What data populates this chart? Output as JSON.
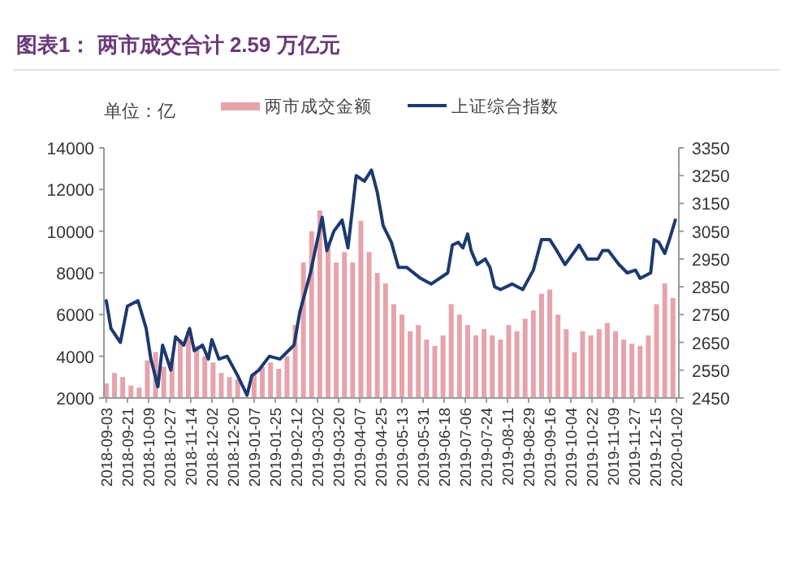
{
  "chart_data": {
    "type": "bar",
    "title": "图表1：  两市成交合计 2.59 万亿元",
    "ylabel": "单位：亿",
    "xlim": [
      "2018-09-01",
      "2020-01-04"
    ],
    "xticks": [
      "2018-09-03",
      "2018-09-21",
      "2018-10-09",
      "2018-10-27",
      "2018-11-14",
      "2018-12-02",
      "2018-12-20",
      "2019-01-07",
      "2019-01-25",
      "2019-02-12",
      "2019-03-02",
      "2019-03-20",
      "2019-04-07",
      "2019-04-25",
      "2019-05-13",
      "2019-05-31",
      "2019-06-18",
      "2019-07-06",
      "2019-07-24",
      "2019-08-11",
      "2019-08-29",
      "2019-09-16",
      "2019-10-04",
      "2019-10-22",
      "2019-11-09",
      "2019-11-27",
      "2019-12-15",
      "2020-01-02"
    ],
    "ylim": [
      2000,
      14000
    ],
    "yticks": [
      2000,
      4000,
      6000,
      8000,
      10000,
      12000,
      14000
    ],
    "y2lim": [
      2450,
      3350
    ],
    "y2ticks": [
      2450,
      2550,
      2650,
      2750,
      2850,
      2950,
      3050,
      3150,
      3250,
      3350
    ],
    "legend": "top",
    "grid": false,
    "series": [
      {
        "name": "两市成交金额",
        "color": "#e6a3ab",
        "x": [
          "2018-09-03",
          "2018-09-10",
          "2018-09-17",
          "2018-09-24",
          "2018-10-01",
          "2018-10-08",
          "2018-10-15",
          "2018-10-22",
          "2018-10-29",
          "2018-11-05",
          "2018-11-12",
          "2018-11-19",
          "2018-11-26",
          "2018-12-03",
          "2018-12-10",
          "2018-12-17",
          "2018-12-24",
          "2019-01-07",
          "2019-01-14",
          "2019-01-21",
          "2019-01-28",
          "2019-02-04",
          "2019-02-11",
          "2019-02-18",
          "2019-02-25",
          "2019-03-04",
          "2019-03-11",
          "2019-03-18",
          "2019-03-25",
          "2019-04-01",
          "2019-04-08",
          "2019-04-15",
          "2019-04-22",
          "2019-04-29",
          "2019-05-06",
          "2019-05-13",
          "2019-05-20",
          "2019-05-27",
          "2019-06-03",
          "2019-06-10",
          "2019-06-17",
          "2019-06-24",
          "2019-07-01",
          "2019-07-08",
          "2019-07-15",
          "2019-07-22",
          "2019-07-29",
          "2019-08-05",
          "2019-08-12",
          "2019-08-19",
          "2019-08-26",
          "2019-09-02",
          "2019-09-09",
          "2019-09-16",
          "2019-09-23",
          "2019-09-30",
          "2019-10-07",
          "2019-10-14",
          "2019-10-21",
          "2019-10-28",
          "2019-11-04",
          "2019-11-11",
          "2019-11-18",
          "2019-11-25",
          "2019-12-02",
          "2019-12-09",
          "2019-12-16",
          "2019-12-23",
          "2019-12-30"
        ],
        "values": [
          2700,
          3200,
          3000,
          2600,
          2500,
          3800,
          4200,
          3500,
          3900,
          4800,
          5200,
          4500,
          4000,
          3700,
          3200,
          3000,
          2900,
          3200,
          3500,
          3700,
          3400,
          4000,
          5500,
          8500,
          10000,
          11000,
          9500,
          8500,
          9000,
          8500,
          10500,
          9000,
          8000,
          7500,
          6500,
          6000,
          5200,
          5500,
          4800,
          4500,
          5000,
          6500,
          6000,
          5500,
          5000,
          5300,
          5000,
          4800,
          5500,
          5200,
          5800,
          6200,
          7000,
          7200,
          6000,
          5300,
          4200,
          5200,
          5000,
          5300,
          5600,
          5200,
          4800,
          4600,
          4500,
          5000,
          6500,
          7500,
          6800
        ]
      },
      {
        "name": "上证综合指数",
        "type": "line",
        "axis": "y2",
        "color": "#1c3a70",
        "x": [
          "2018-09-03",
          "2018-09-07",
          "2018-09-15",
          "2018-09-21",
          "2018-09-30",
          "2018-10-07",
          "2018-10-11",
          "2018-10-17",
          "2018-10-21",
          "2018-10-28",
          "2018-11-01",
          "2018-11-08",
          "2018-11-13",
          "2018-11-17",
          "2018-11-24",
          "2018-11-29",
          "2018-12-02",
          "2018-12-08",
          "2018-12-15",
          "2018-12-24",
          "2019-01-01",
          "2019-01-05",
          "2019-01-11",
          "2019-01-20",
          "2019-01-29",
          "2019-02-10",
          "2019-02-15",
          "2019-02-24",
          "2019-02-28",
          "2019-03-06",
          "2019-03-10",
          "2019-03-16",
          "2019-03-23",
          "2019-03-28",
          "2019-04-04",
          "2019-04-11",
          "2019-04-17",
          "2019-04-22",
          "2019-04-27",
          "2019-05-04",
          "2019-05-10",
          "2019-05-17",
          "2019-05-29",
          "2019-06-07",
          "2019-06-21",
          "2019-06-25",
          "2019-06-30",
          "2019-07-04",
          "2019-07-08",
          "2019-07-11",
          "2019-07-16",
          "2019-07-23",
          "2019-07-27",
          "2019-07-31",
          "2019-08-05",
          "2019-08-15",
          "2019-08-24",
          "2019-09-02",
          "2019-09-09",
          "2019-09-16",
          "2019-09-22",
          "2019-09-29",
          "2019-10-11",
          "2019-10-18",
          "2019-10-27",
          "2019-10-31",
          "2019-11-05",
          "2019-11-14",
          "2019-11-21",
          "2019-11-28",
          "2019-12-02",
          "2019-12-11",
          "2019-12-14",
          "2019-12-18",
          "2019-12-23",
          "2019-12-27",
          "2020-01-01"
        ],
        "values": [
          2800,
          2700,
          2650,
          2780,
          2800,
          2700,
          2590,
          2490,
          2640,
          2550,
          2670,
          2640,
          2700,
          2620,
          2640,
          2590,
          2660,
          2590,
          2600,
          2530,
          2460,
          2530,
          2550,
          2600,
          2590,
          2640,
          2760,
          2900,
          2980,
          3100,
          2980,
          3050,
          3090,
          2990,
          3250,
          3230,
          3270,
          3190,
          3070,
          3010,
          2920,
          2920,
          2880,
          2860,
          2900,
          3000,
          3010,
          2990,
          3040,
          2980,
          2930,
          2950,
          2920,
          2850,
          2840,
          2860,
          2840,
          2910,
          3020,
          3020,
          2980,
          2930,
          3000,
          2950,
          2950,
          2980,
          2980,
          2930,
          2900,
          2910,
          2880,
          2900,
          3020,
          3010,
          2970,
          3020,
          3090
        ]
      }
    ]
  }
}
